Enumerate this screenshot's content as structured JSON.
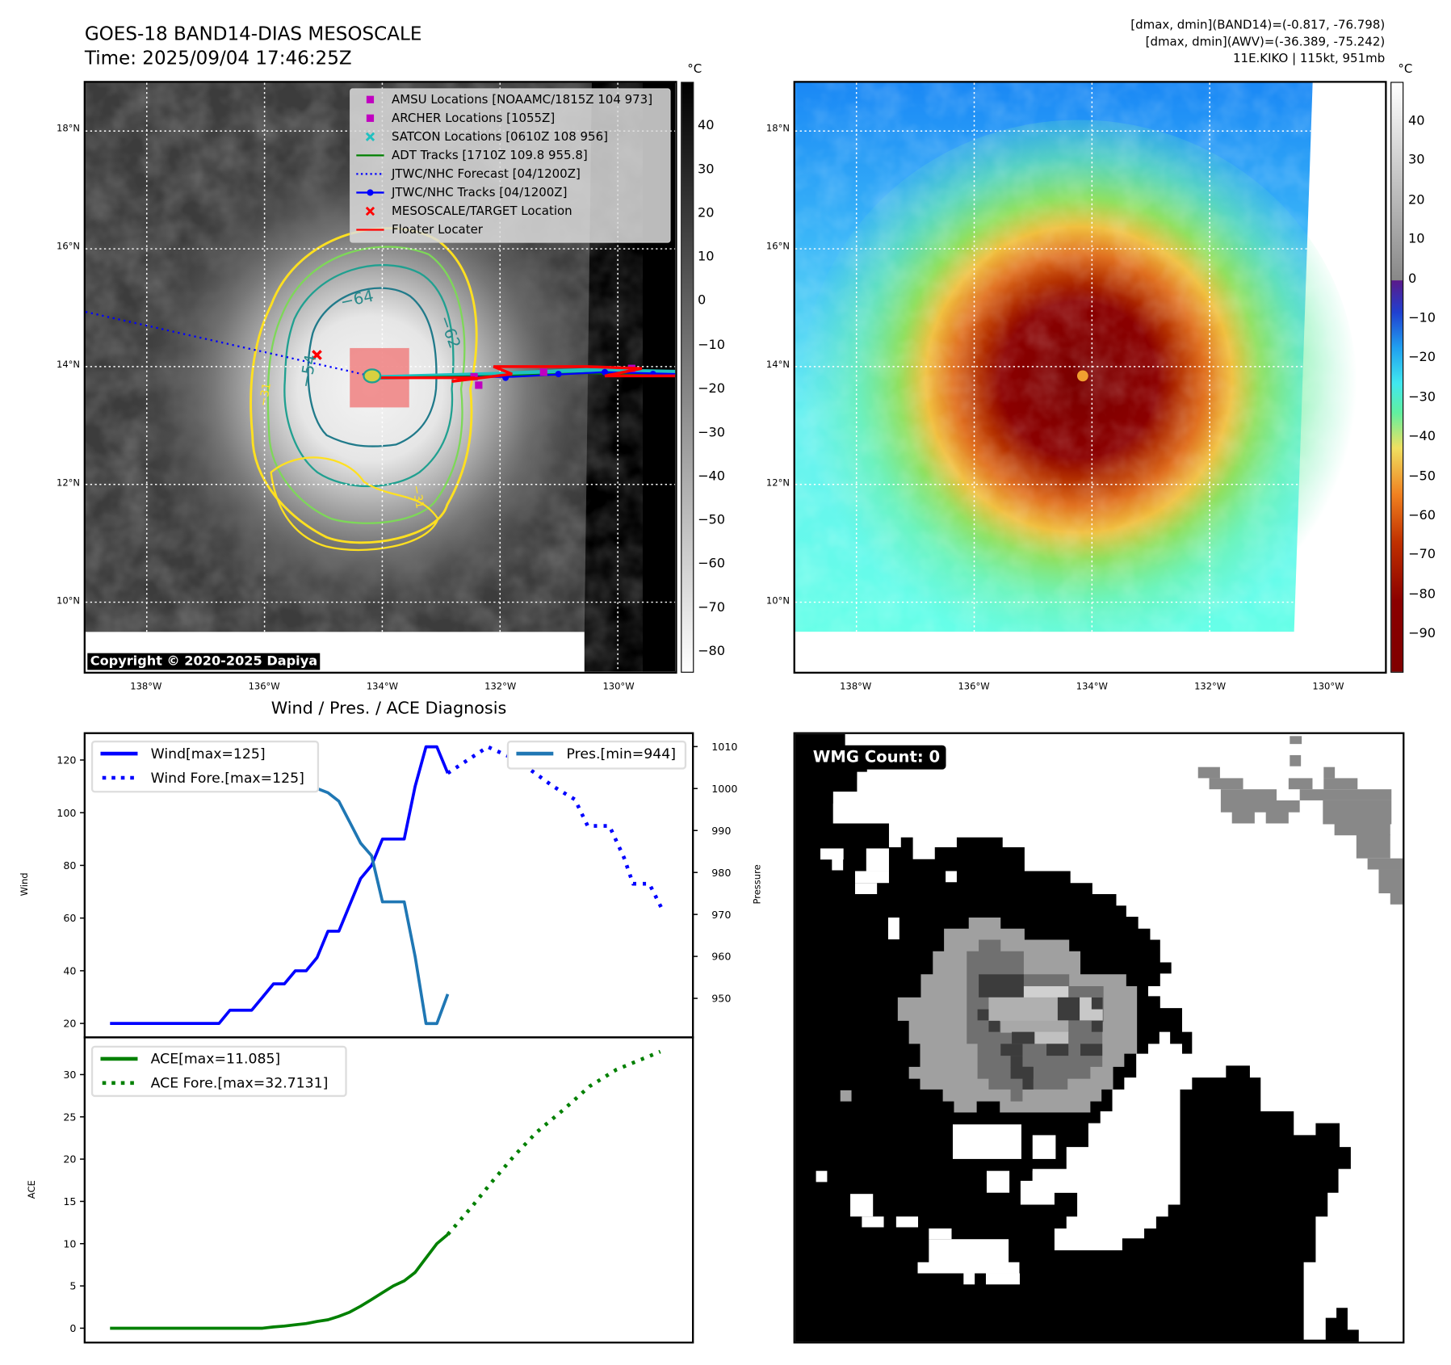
{
  "header": {
    "title": "GOES-18 BAND14-DIAS MESOSCALE",
    "time": "Time: 2025/09/04 17:46:25Z",
    "stats": [
      "[dmax, dmin](BAND14)=(-0.817, -76.798)",
      "[dmax, dmin](AWV)=(-36.389, -75.242)",
      "11E.KIKO | 115kt, 951mb"
    ]
  },
  "maps": {
    "lat_labels": [
      "18°N",
      "16°N",
      "14°N",
      "12°N",
      "10°N"
    ],
    "lon_labels": [
      "138°W",
      "136°W",
      "134°W",
      "132°W",
      "130°W"
    ],
    "unit": "°C"
  },
  "left_map": {
    "legend": [
      {
        "label": "AMSU Locations [NOAAMC/1815Z 104 973]",
        "marker": "square",
        "color": "#c000c0"
      },
      {
        "label": "ARCHER Locations [1055Z]",
        "marker": "square",
        "color": "#c000c0"
      },
      {
        "label": "SATCON Locations [0610Z 108 956]",
        "marker": "x",
        "color": "#20c0c0"
      },
      {
        "label": "ADT Tracks [1710Z 109.8 955.8]",
        "marker": "line",
        "color": "#008000"
      },
      {
        "label": "JTWC/NHC Forecast [04/1200Z]",
        "marker": "dotted",
        "color": "#0000ff"
      },
      {
        "label": "JTWC/NHC Tracks [04/1200Z]",
        "marker": "line-dot",
        "color": "#0000ff"
      },
      {
        "label": "MESOSCALE/TARGET Location",
        "marker": "x",
        "color": "#ff0000"
      },
      {
        "label": "Floater Locater",
        "marker": "line",
        "color": "#ff0000"
      }
    ],
    "contour_labels": [
      "−64",
      "−62",
      "−54",
      "−31",
      "−31"
    ],
    "colorbar_ticks": [
      "40",
      "30",
      "20",
      "10",
      "0",
      "−10",
      "−20",
      "−30",
      "−40",
      "−50",
      "−60",
      "−70",
      "−80"
    ],
    "copyright": "Copyright © 2020-2025 Dapiya"
  },
  "right_map": {
    "colorbar_ticks": [
      "40",
      "30",
      "20",
      "10",
      "0",
      "−10",
      "−20",
      "−30",
      "−40",
      "−50",
      "−60",
      "−70",
      "−80",
      "−90"
    ]
  },
  "wmg": {
    "label": "WMG Count: 0"
  },
  "chart_data": {
    "type": "line",
    "title": "Wind / Pres. / ACE Diagnosis",
    "xlim": [
      -14,
      321
    ],
    "upper": {
      "ylabel": "Wind",
      "y2label": "Pressure",
      "ylim": [
        14.7,
        130.2
      ],
      "y2lim": [
        940.7,
        1013.2
      ],
      "yticks": [
        20,
        40,
        60,
        80,
        100,
        120
      ],
      "y2ticks": [
        950,
        960,
        970,
        980,
        990,
        1000,
        1010
      ],
      "series": [
        {
          "name": "Wind[max=125]",
          "axis": "left",
          "style": "solid",
          "color": "#0000ff",
          "x": [
            0,
            6,
            12,
            18,
            24,
            30,
            36,
            42,
            48,
            54,
            60,
            66,
            72,
            78,
            84,
            90,
            96,
            102,
            108,
            114,
            120,
            126,
            132,
            138,
            144,
            150,
            156,
            162,
            168,
            174,
            180,
            186
          ],
          "y": [
            20,
            20,
            20,
            20,
            20,
            20,
            20,
            20,
            20,
            20,
            20,
            25,
            25,
            25,
            30,
            35,
            35,
            40,
            40,
            45,
            55,
            55,
            65,
            75,
            80,
            90,
            90,
            90,
            110,
            125,
            125,
            115
          ]
        },
        {
          "name": "Wind Fore.[max=125]",
          "axis": "left",
          "style": "dotted",
          "color": "#0000ff",
          "x": [
            186,
            208,
            224,
            234,
            244,
            256,
            263,
            275,
            283,
            288,
            297,
            305
          ],
          "y": [
            115,
            125,
            120,
            115,
            110,
            105,
            95,
            95,
            83,
            73,
            73,
            62
          ]
        },
        {
          "name": "Pres.[min=944]",
          "axis": "right",
          "style": "solid",
          "color": "#1f77b4",
          "x": [
            0,
            6,
            12,
            18,
            24,
            30,
            36,
            42,
            48,
            54,
            60,
            66,
            72,
            78,
            84,
            90,
            96,
            102,
            108,
            114,
            120,
            126,
            132,
            138,
            144,
            150,
            156,
            162,
            168,
            174,
            180,
            186
          ],
          "y": [
            1010,
            1010,
            1010,
            1010,
            1010,
            1010,
            1010,
            1010,
            1010,
            1010,
            1010,
            1010,
            1009,
            1009,
            1008,
            1007,
            1006,
            1004,
            1004,
            1000,
            999,
            997,
            992,
            987,
            984,
            973,
            973,
            973,
            960,
            944,
            944,
            951
          ]
        }
      ],
      "legends": [
        {
          "items": [
            "Wind[max=125]",
            "Wind Fore.[max=125]"
          ],
          "placement": "upper-left"
        },
        {
          "items": [
            "Pres.[min=944]"
          ],
          "placement": "upper-right"
        }
      ]
    },
    "lower": {
      "ylabel": "ACE",
      "ylim": [
        -1.7,
        34.4
      ],
      "yticks": [
        0,
        5,
        10,
        15,
        20,
        25,
        30
      ],
      "series": [
        {
          "name": "ACE[max=11.085]",
          "style": "solid",
          "color": "#008000",
          "x": [
            0,
            6,
            12,
            18,
            24,
            30,
            36,
            42,
            48,
            54,
            60,
            66,
            72,
            78,
            84,
            90,
            96,
            102,
            108,
            114,
            120,
            126,
            132,
            138,
            144,
            150,
            156,
            162,
            168,
            174,
            180,
            186
          ],
          "y": [
            0,
            0,
            0,
            0,
            0,
            0,
            0,
            0,
            0,
            0,
            0,
            0,
            0,
            0,
            0,
            0.15,
            0.25,
            0.4,
            0.55,
            0.8,
            1.0,
            1.4,
            1.9,
            2.6,
            3.4,
            4.2,
            5.0,
            5.6,
            6.6,
            8.3,
            10.0,
            11.085
          ]
        },
        {
          "name": "ACE Fore.[max=32.7131]",
          "style": "dotted",
          "color": "#008000",
          "x": [
            186,
            199,
            211,
            223,
            235,
            250,
            264,
            279,
            303
          ],
          "y": [
            11.085,
            14.3,
            17.5,
            20.5,
            23.2,
            25.9,
            28.6,
            30.6,
            32.7131
          ]
        }
      ],
      "legends": [
        {
          "items": [
            "ACE[max=11.085]",
            "ACE Fore.[max=32.7131]"
          ],
          "placement": "upper-left"
        }
      ]
    }
  }
}
